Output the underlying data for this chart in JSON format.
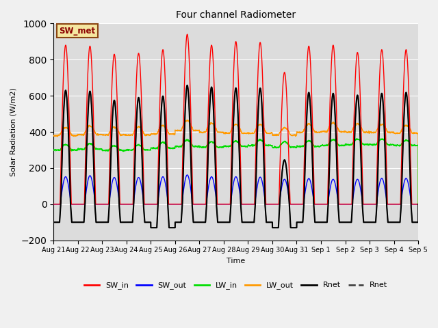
{
  "title": "Four channel Radiometer",
  "xlabel": "Time",
  "ylabel": "Solar Radiation (W/m2)",
  "ylim": [
    -200,
    1000
  ],
  "plot_bg": "#dcdcdc",
  "fig_bg": "#f0f0f0",
  "x_labels": [
    "Aug 21",
    "Aug 22",
    "Aug 23",
    "Aug 24",
    "Aug 25",
    "Aug 26",
    "Aug 27",
    "Aug 28",
    "Aug 29",
    "Aug 30",
    "Aug 31",
    "Sep 1",
    "Sep 2",
    "Sep 3",
    "Sep 4",
    "Sep 5"
  ],
  "annotation": "SW_met",
  "annotation_fgcolor": "#8b0000",
  "annotation_bg": "#f5e6a0",
  "annotation_border": "#8b4513",
  "num_days": 15,
  "SW_in_peaks": [
    880,
    875,
    830,
    835,
    855,
    940,
    880,
    900,
    895,
    730,
    875,
    880,
    840,
    855,
    855
  ],
  "SW_out_peaks": [
    152,
    158,
    148,
    148,
    152,
    162,
    152,
    152,
    150,
    138,
    142,
    138,
    138,
    143,
    143
  ],
  "LW_in_base": [
    300,
    305,
    298,
    300,
    310,
    320,
    315,
    320,
    325,
    315,
    320,
    325,
    330,
    330,
    325
  ],
  "LW_in_bump": [
    30,
    30,
    25,
    28,
    32,
    35,
    30,
    30,
    32,
    30,
    30,
    32,
    30,
    30,
    28
  ],
  "LW_out_base": [
    380,
    385,
    383,
    383,
    388,
    408,
    398,
    393,
    393,
    382,
    398,
    402,
    398,
    397,
    393
  ],
  "LW_out_bump": [
    45,
    48,
    42,
    45,
    48,
    55,
    50,
    48,
    47,
    40,
    45,
    48,
    46,
    45,
    43
  ],
  "Rnet_peaks": [
    630,
    625,
    575,
    590,
    598,
    658,
    648,
    643,
    642,
    245,
    618,
    613,
    603,
    613,
    618
  ],
  "Rnet_night": [
    -100,
    -100,
    -100,
    -100,
    -130,
    -100,
    -100,
    -100,
    -100,
    -130,
    -100,
    -100,
    -100,
    -100,
    -100
  ],
  "colors": {
    "SW_in": "#ff0000",
    "SW_out": "#0000ff",
    "LW_in": "#00dd00",
    "LW_out": "#ff9900",
    "Rnet": "#000000",
    "Rnet2": "#444444"
  },
  "linewidths": {
    "SW_in": 1.0,
    "SW_out": 1.0,
    "LW_in": 1.0,
    "LW_out": 1.0,
    "Rnet": 1.5,
    "Rnet2": 1.0
  }
}
